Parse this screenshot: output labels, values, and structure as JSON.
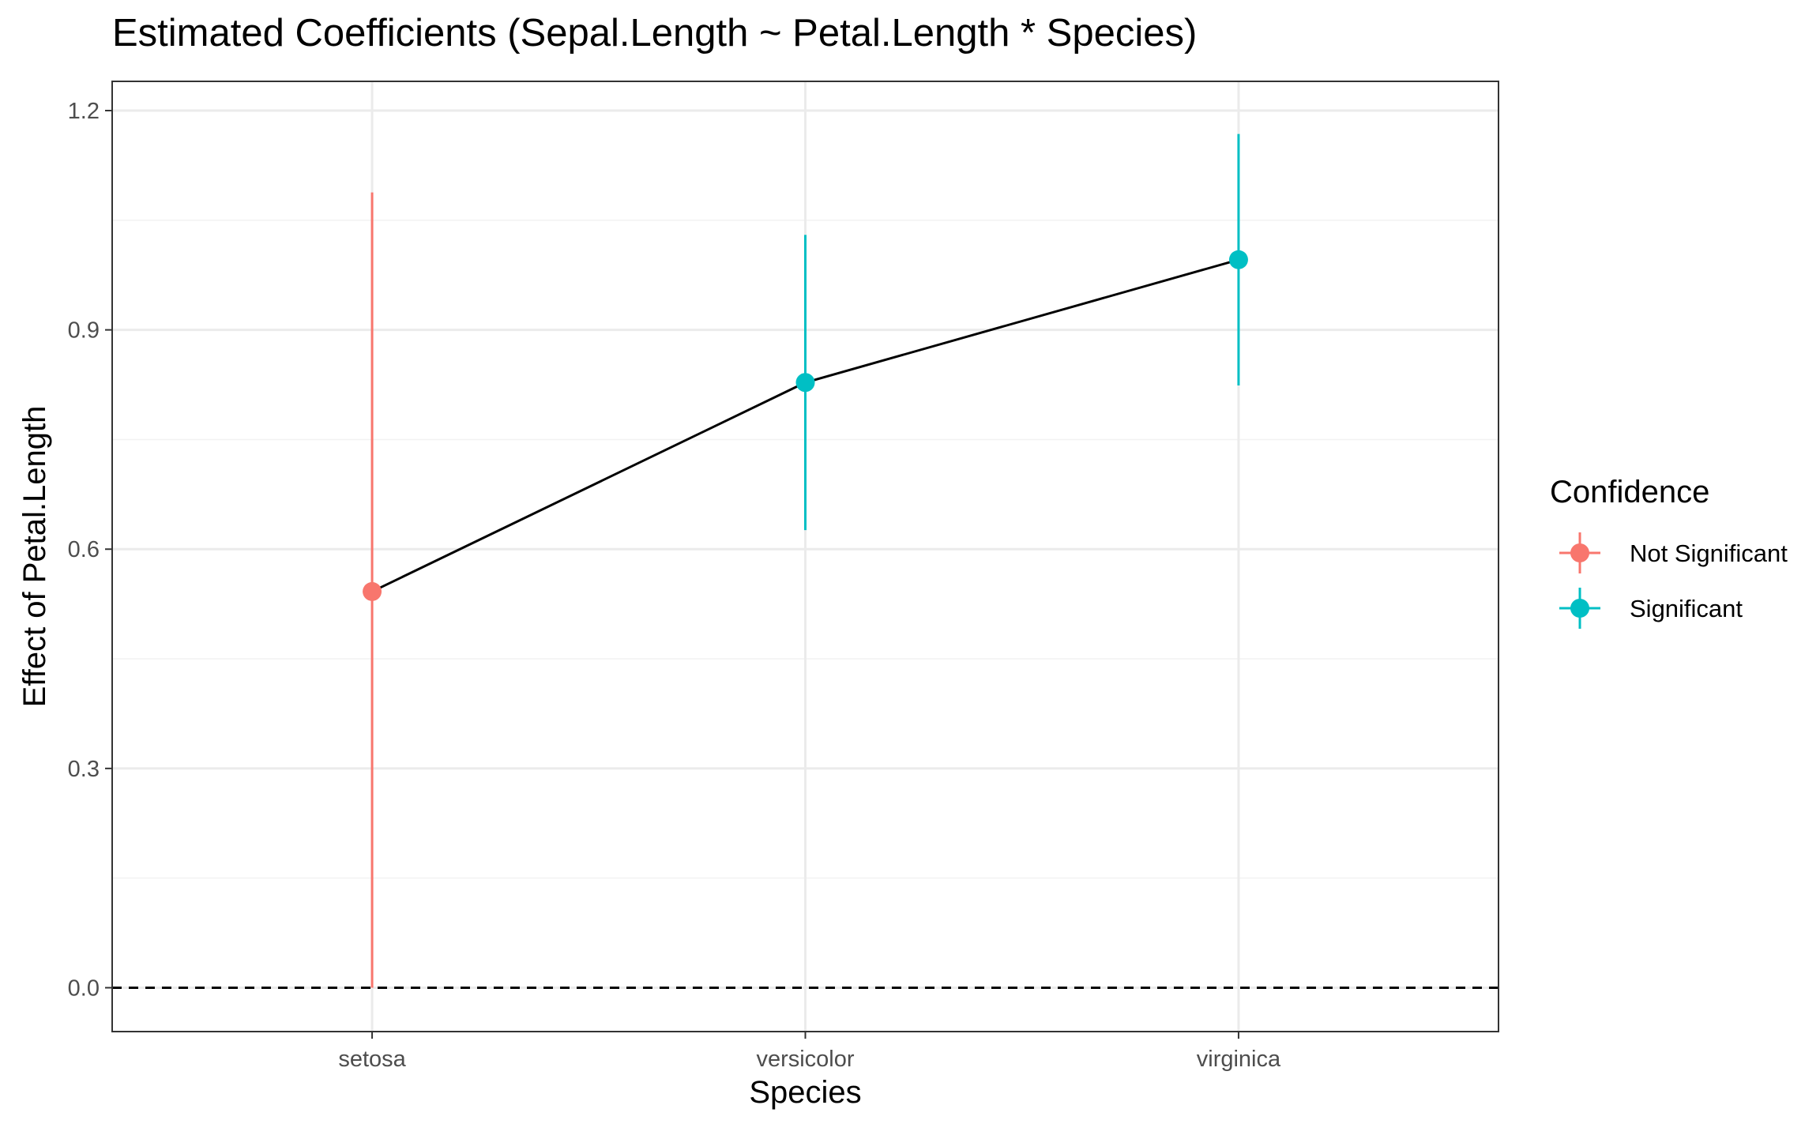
{
  "chart_data": {
    "type": "scatter",
    "title": "Estimated Coefficients (Sepal.Length ~ Petal.Length * Species)",
    "xlabel": "Species",
    "ylabel": "Effect of Petal.Length",
    "categories": [
      "setosa",
      "versicolor",
      "virginica"
    ],
    "ylim": [
      -0.06,
      1.24
    ],
    "yticks": [
      0.0,
      0.3,
      0.6,
      0.9,
      1.2
    ],
    "ytick_labels": [
      "0.0",
      "0.3",
      "0.6",
      "0.9",
      "1.2"
    ],
    "grid": true,
    "reference_line": {
      "y": 0,
      "style": "dashed"
    },
    "connect_points": true,
    "points": [
      {
        "category": "setosa",
        "estimate": 0.542,
        "lower": 0.0,
        "upper": 1.088,
        "group": "Not Significant"
      },
      {
        "category": "versicolor",
        "estimate": 0.828,
        "lower": 0.626,
        "upper": 1.03,
        "group": "Significant"
      },
      {
        "category": "virginica",
        "estimate": 0.996,
        "lower": 0.824,
        "upper": 1.168,
        "group": "Significant"
      }
    ],
    "legend": {
      "title": "Confidence",
      "position": "right",
      "entries": [
        {
          "label": "Not Significant",
          "color": "#F8766D"
        },
        {
          "label": "Significant",
          "color": "#00BFC4"
        }
      ]
    }
  }
}
